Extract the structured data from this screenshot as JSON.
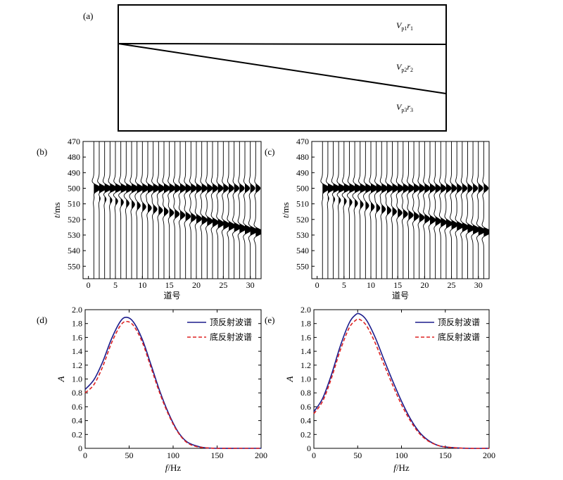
{
  "panels": {
    "a": {
      "label": "(a)",
      "layers": [
        {
          "v": "V",
          "sub": "p1",
          "r": "r",
          "rsub": "1"
        },
        {
          "v": "V",
          "sub": "p2",
          "r": "r",
          "rsub": "2"
        },
        {
          "v": "V",
          "sub": "p3",
          "r": "r",
          "rsub": "3"
        }
      ]
    },
    "b": {
      "label": "(b)"
    },
    "c": {
      "label": "(c)"
    },
    "d": {
      "label": "(d)"
    },
    "e": {
      "label": "(e)"
    }
  },
  "chart_data": [
    {
      "panel": "a",
      "type": "diagram",
      "title": "",
      "layers": [
        "Vp1 r1",
        "Vp2 r2",
        "Vp3 r3"
      ],
      "boundaries": [
        "flat interface",
        "dipping interface"
      ]
    },
    {
      "panel": "b",
      "type": "wiggle",
      "ylabel_var": "t",
      "ylabel_unit": "/ms",
      "xlabel": "道号",
      "ylim": [
        470,
        558
      ],
      "y_reversed": true,
      "y_ticks": [
        470,
        480,
        490,
        500,
        510,
        520,
        530,
        540,
        550
      ],
      "xlim": [
        -1,
        32
      ],
      "x_ticks": [
        0,
        5,
        10,
        15,
        20,
        25,
        30
      ],
      "trace_start": 1,
      "trace_end": 31,
      "top_reflection_time": 500,
      "bottom_reflection_start": 505,
      "bottom_reflection_end": 528,
      "top_amp_start": 1.0,
      "top_amp_end": 0.62,
      "bottom_amp_start": 0.25,
      "bottom_amp_end": 1.0
    },
    {
      "panel": "c",
      "type": "wiggle",
      "ylabel_var": "t",
      "ylabel_unit": "/ms",
      "xlabel": "道号",
      "ylim": [
        470,
        558
      ],
      "y_reversed": true,
      "y_ticks": [
        470,
        480,
        490,
        500,
        510,
        520,
        530,
        540,
        550
      ],
      "xlim": [
        -1,
        32
      ],
      "x_ticks": [
        0,
        5,
        10,
        15,
        20,
        25,
        30
      ],
      "trace_start": 1,
      "trace_end": 31,
      "top_reflection_time": 500,
      "bottom_reflection_start": 505,
      "bottom_reflection_end": 528,
      "top_amp_start": 1.0,
      "top_amp_end": 0.62,
      "bottom_amp_start": 0.25,
      "bottom_amp_end": 1.0
    },
    {
      "panel": "d",
      "type": "line",
      "ylabel": "A",
      "xlabel_var": "f",
      "xlabel_unit": "/Hz",
      "xlim": [
        0,
        200
      ],
      "ylim": [
        0,
        2.0
      ],
      "x_ticks": [
        0,
        50,
        100,
        150,
        200
      ],
      "y_ticks": [
        "0",
        "0.2",
        "0.4",
        "0.6",
        "0.8",
        "1.0",
        "1.2",
        "1.4",
        "1.6",
        "1.8",
        "2.0"
      ],
      "legend": "top-right",
      "series": [
        {
          "name": "顶反射波谱",
          "color": "#1c1c8c",
          "dash": "solid",
          "x": [
            0,
            10,
            20,
            30,
            40,
            47,
            55,
            65,
            75,
            85,
            95,
            105,
            115,
            125,
            135,
            150,
            175,
            200
          ],
          "y": [
            0.85,
            0.99,
            1.25,
            1.58,
            1.83,
            1.89,
            1.82,
            1.57,
            1.2,
            0.82,
            0.5,
            0.25,
            0.1,
            0.04,
            0.01,
            0.0,
            0.0,
            0.0
          ]
        },
        {
          "name": "底反射波谱",
          "color": "#dd2222",
          "dash": "dashed",
          "x": [
            0,
            10,
            20,
            30,
            40,
            47,
            55,
            65,
            75,
            85,
            95,
            105,
            115,
            125,
            135,
            150,
            175,
            200
          ],
          "y": [
            0.8,
            0.92,
            1.18,
            1.52,
            1.77,
            1.83,
            1.77,
            1.53,
            1.16,
            0.79,
            0.48,
            0.24,
            0.09,
            0.03,
            0.01,
            0.0,
            0.0,
            0.0
          ]
        }
      ]
    },
    {
      "panel": "e",
      "type": "line",
      "ylabel": "A",
      "xlabel_var": "f",
      "xlabel_unit": "/Hz",
      "xlim": [
        0,
        200
      ],
      "ylim": [
        0,
        2.0
      ],
      "x_ticks": [
        0,
        50,
        100,
        150,
        200
      ],
      "y_ticks": [
        "0",
        "0.2",
        "0.4",
        "0.6",
        "0.8",
        "1.0",
        "1.2",
        "1.4",
        "1.6",
        "1.8",
        "2.0"
      ],
      "legend": "top-right",
      "series": [
        {
          "name": "顶反射波谱",
          "color": "#1c1c8c",
          "dash": "solid",
          "x": [
            0,
            10,
            20,
            30,
            40,
            47,
            52,
            60,
            70,
            80,
            90,
            100,
            110,
            120,
            130,
            140,
            150,
            175,
            200
          ],
          "y": [
            0.53,
            0.72,
            1.06,
            1.47,
            1.8,
            1.92,
            1.94,
            1.85,
            1.6,
            1.28,
            0.97,
            0.68,
            0.43,
            0.24,
            0.12,
            0.05,
            0.02,
            0.0,
            0.0
          ]
        },
        {
          "name": "底反射波谱",
          "color": "#dd2222",
          "dash": "dashed",
          "x": [
            0,
            10,
            20,
            30,
            40,
            47,
            52,
            60,
            70,
            80,
            90,
            100,
            110,
            120,
            130,
            140,
            150,
            175,
            200
          ],
          "y": [
            0.5,
            0.68,
            1.01,
            1.41,
            1.73,
            1.84,
            1.86,
            1.77,
            1.52,
            1.21,
            0.91,
            0.63,
            0.4,
            0.22,
            0.11,
            0.05,
            0.02,
            0.0,
            0.0
          ]
        }
      ]
    }
  ]
}
